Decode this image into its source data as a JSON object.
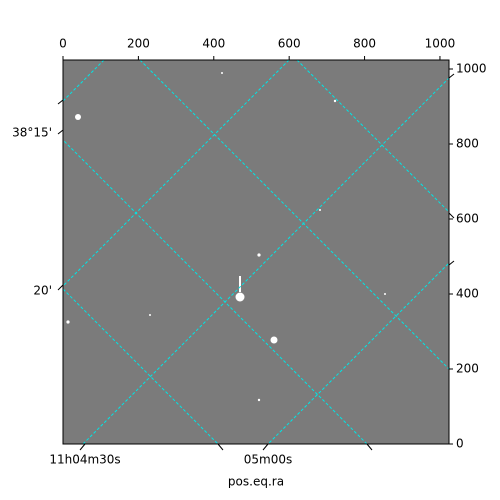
{
  "chart_data": {
    "type": "image",
    "xlim": [
      0,
      1024
    ],
    "ylim": [
      0,
      1024
    ],
    "xticks": [
      0,
      200,
      400,
      600,
      800,
      1000
    ],
    "yticks": [
      0,
      200,
      400,
      600,
      800,
      1000
    ],
    "ra_ticks": [
      {
        "value": 166.125,
        "label": "11h04m30s"
      },
      {
        "value": 166.25,
        "label": "05m00s"
      }
    ],
    "dec_ticks": [
      {
        "value": 38.25,
        "label": "38°15'"
      },
      {
        "value": 38.3333,
        "label": "20'"
      }
    ],
    "xlabel": "pos.eq.ra",
    "grid_color": "#00e5e5"
  }
}
